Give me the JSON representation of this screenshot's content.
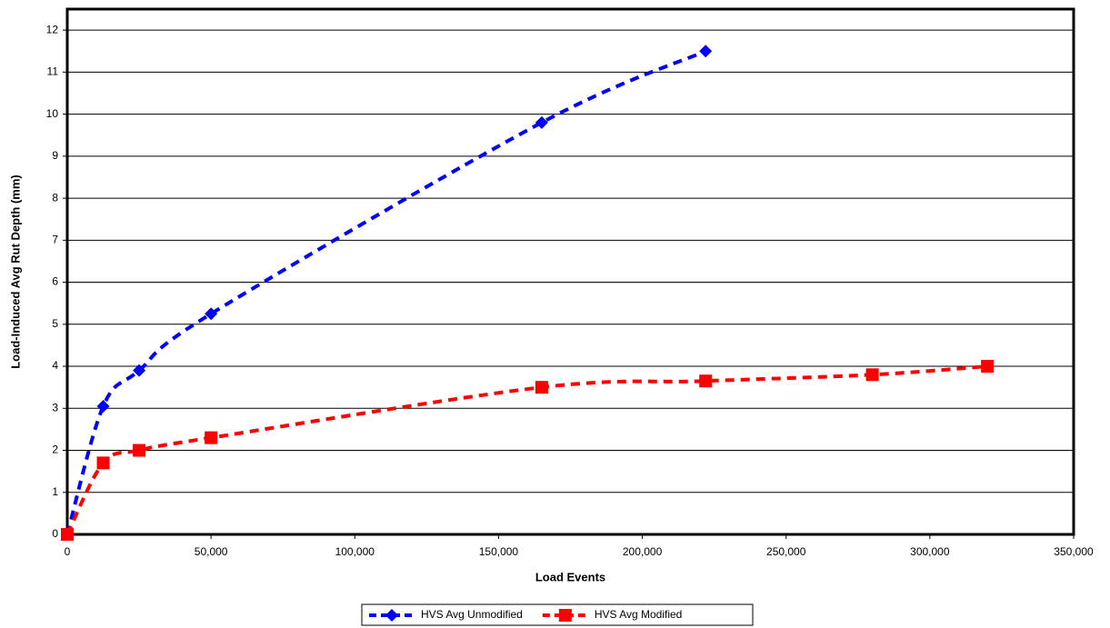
{
  "chart_data": {
    "type": "scatter",
    "x_label": "Load Events",
    "y_label": "Load-Induced Avg Rut Depth (mm)",
    "xlim": [
      0,
      350000
    ],
    "xticks": [
      0,
      {
        "value": 50000,
        "label": "50,000"
      },
      {
        "value": 100000,
        "label": "100,000"
      },
      {
        "value": 150000,
        "label": "150,000"
      },
      {
        "value": 200000,
        "label": "200,000"
      },
      {
        "value": 250000,
        "label": "250,000"
      },
      {
        "value": 300000,
        "label": "300,000"
      },
      {
        "value": 350000,
        "label": "350,000"
      }
    ],
    "ylim": [
      0,
      12.5
    ],
    "yticks": [
      0,
      1,
      2,
      3,
      4,
      5,
      6,
      7,
      8,
      9,
      10,
      11,
      12
    ],
    "grid": true,
    "legend": "bottom",
    "series": [
      {
        "name": "HVS Avg Unmodified",
        "color": "#0000ff",
        "marker": "diamond",
        "x": [
          0,
          12500,
          25000,
          50000,
          165000,
          222000
        ],
        "values": [
          0,
          3.05,
          3.9,
          5.25,
          9.8,
          11.5
        ]
      },
      {
        "name": "HVS Avg Modified",
        "color": "#ff0000",
        "marker": "square",
        "x": [
          0,
          12500,
          25000,
          50000,
          165000,
          222000,
          280000,
          320000
        ],
        "values": [
          0,
          1.7,
          2.0,
          2.3,
          3.5,
          3.65,
          3.8,
          4.0
        ]
      }
    ]
  }
}
